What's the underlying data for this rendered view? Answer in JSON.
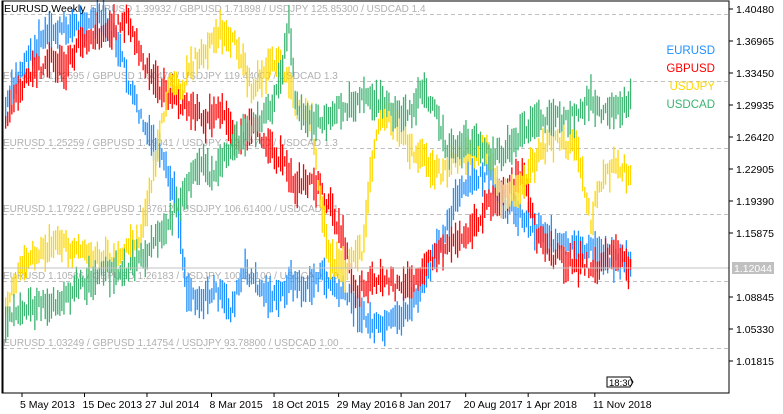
{
  "window": {
    "title": "EURUSD,Weekly"
  },
  "colors": {
    "EURUSD": "#1E90FF",
    "GBPUSD": "#FF0000",
    "USDJPY": "#FFD700",
    "USDCAD": "#3CB371",
    "grid": "#C0C0C0",
    "price_tag": "#C0C0C0"
  },
  "overlay_levels": [
    "EURUSD 1.39932 / GBPUSD 1.71898 / USDJPY 125.85300 / USDCAD 1.4",
    "EURUSD 1.32595 / GBPUSD 1.60470 / USDJPY 119.44000 / USDCAD 1.3",
    "EURUSD 1.25259 / GBPUSD 1.49041 / USDJPY 113.02700 / USDCAD 1.3",
    "EURUSD 1.17922 / GBPUSD 1.37612 / USDJPY 106.61400 / USDCAD 1.1",
    "EURUSD 1.10586 / GBPUSD 1.26183 / USDJPY 100.20100 / USDCAD 1.0",
    "EURUSD 1.03249 / GBPUSD 1.14754 / USDJPY 93.78800 / USDCAD 1.00"
  ],
  "period_marker": "18:30",
  "chart_data": {
    "type": "bar",
    "title": "EURUSD,Weekly",
    "xlabel": "",
    "ylabel": "",
    "ylim": [
      1.0048,
      1.4108
    ],
    "xlim_weeks": [
      0,
      300
    ],
    "grid": true,
    "legend_position": "top-right",
    "current_price": "1.12044",
    "y_ticks": [
      "1.40480",
      "1.36965",
      "1.33450",
      "1.29935",
      "1.26420",
      "1.22905",
      "1.19390",
      "1.15875",
      "1.08845",
      "1.05330",
      "1.01815"
    ],
    "x_ticks": [
      {
        "week": 12,
        "label": "5 May 2013"
      },
      {
        "week": 42,
        "label": "15 Dec 2013"
      },
      {
        "week": 72,
        "label": "27 Jul 2014"
      },
      {
        "week": 103,
        "label": "8 Mar 2015"
      },
      {
        "week": 133,
        "label": "18 Oct 2015"
      },
      {
        "week": 164,
        "label": "29 May 2016"
      },
      {
        "week": 194,
        "label": "8 Jan 2017"
      },
      {
        "week": 225,
        "label": "20 Aug 2017"
      },
      {
        "week": 255,
        "label": "1 Apr 2018"
      },
      {
        "week": 287,
        "label": "11 Nov 2018"
      }
    ],
    "series": [
      {
        "name": "EURUSD",
        "points": [
          [
            0,
            1.294
          ],
          [
            7,
            1.338
          ],
          [
            17,
            1.371
          ],
          [
            26,
            1.382
          ],
          [
            36,
            1.388
          ],
          [
            46,
            1.393
          ],
          [
            53,
            1.371
          ],
          [
            60,
            1.316
          ],
          [
            67,
            1.272
          ],
          [
            75,
            1.239
          ],
          [
            82,
            1.195
          ],
          [
            87,
            1.096
          ],
          [
            94,
            1.085
          ],
          [
            101,
            1.096
          ],
          [
            108,
            1.074
          ],
          [
            115,
            1.118
          ],
          [
            123,
            1.096
          ],
          [
            130,
            1.085
          ],
          [
            137,
            1.107
          ],
          [
            144,
            1.096
          ],
          [
            151,
            1.113
          ],
          [
            159,
            1.096
          ],
          [
            166,
            1.085
          ],
          [
            173,
            1.063
          ],
          [
            180,
            1.052
          ],
          [
            188,
            1.063
          ],
          [
            195,
            1.08
          ],
          [
            202,
            1.107
          ],
          [
            209,
            1.151
          ],
          [
            216,
            1.195
          ],
          [
            224,
            1.217
          ],
          [
            231,
            1.223
          ],
          [
            238,
            1.195
          ],
          [
            245,
            1.184
          ],
          [
            252,
            1.168
          ],
          [
            260,
            1.157
          ],
          [
            267,
            1.146
          ],
          [
            274,
            1.14
          ],
          [
            281,
            1.14
          ],
          [
            288,
            1.135
          ],
          [
            296,
            1.129
          ],
          [
            300,
            1.124
          ]
        ]
      },
      {
        "name": "GBPUSD",
        "points": [
          [
            0,
            1.283
          ],
          [
            7,
            1.316
          ],
          [
            14,
            1.338
          ],
          [
            22,
            1.349
          ],
          [
            29,
            1.338
          ],
          [
            36,
            1.371
          ],
          [
            43,
            1.377
          ],
          [
            50,
            1.382
          ],
          [
            58,
            1.393
          ],
          [
            63,
            1.366
          ],
          [
            67,
            1.338
          ],
          [
            75,
            1.316
          ],
          [
            82,
            1.305
          ],
          [
            89,
            1.294
          ],
          [
            96,
            1.283
          ],
          [
            103,
            1.294
          ],
          [
            111,
            1.261
          ],
          [
            118,
            1.272
          ],
          [
            125,
            1.261
          ],
          [
            132,
            1.239
          ],
          [
            139,
            1.212
          ],
          [
            147,
            1.217
          ],
          [
            154,
            1.195
          ],
          [
            161,
            1.162
          ],
          [
            168,
            1.096
          ],
          [
            175,
            1.107
          ],
          [
            183,
            1.107
          ],
          [
            190,
            1.096
          ],
          [
            197,
            1.113
          ],
          [
            204,
            1.129
          ],
          [
            212,
            1.146
          ],
          [
            219,
            1.157
          ],
          [
            226,
            1.168
          ],
          [
            233,
            1.195
          ],
          [
            240,
            1.201
          ],
          [
            248,
            1.223
          ],
          [
            255,
            1.157
          ],
          [
            262,
            1.135
          ],
          [
            269,
            1.129
          ],
          [
            276,
            1.124
          ],
          [
            284,
            1.118
          ],
          [
            291,
            1.14
          ],
          [
            300,
            1.118
          ]
        ]
      },
      {
        "name": "USDJPY",
        "points": [
          [
            0,
            1.085
          ],
          [
            7,
            1.118
          ],
          [
            17,
            1.14
          ],
          [
            26,
            1.146
          ],
          [
            36,
            1.14
          ],
          [
            46,
            1.129
          ],
          [
            55,
            1.135
          ],
          [
            65,
            1.151
          ],
          [
            70,
            1.212
          ],
          [
            75,
            1.283
          ],
          [
            79,
            1.327
          ],
          [
            84,
            1.316
          ],
          [
            91,
            1.349
          ],
          [
            99,
            1.371
          ],
          [
            103,
            1.382
          ],
          [
            111,
            1.366
          ],
          [
            118,
            1.316
          ],
          [
            125,
            1.338
          ],
          [
            132,
            1.349
          ],
          [
            139,
            1.305
          ],
          [
            147,
            1.283
          ],
          [
            151,
            1.195
          ],
          [
            156,
            1.129
          ],
          [
            163,
            1.118
          ],
          [
            171,
            1.14
          ],
          [
            175,
            1.217
          ],
          [
            180,
            1.294
          ],
          [
            188,
            1.272
          ],
          [
            195,
            1.25
          ],
          [
            202,
            1.239
          ],
          [
            209,
            1.223
          ],
          [
            216,
            1.239
          ],
          [
            224,
            1.25
          ],
          [
            231,
            1.256
          ],
          [
            238,
            1.195
          ],
          [
            245,
            1.206
          ],
          [
            252,
            1.228
          ],
          [
            260,
            1.256
          ],
          [
            267,
            1.261
          ],
          [
            274,
            1.25
          ],
          [
            281,
            1.173
          ],
          [
            286,
            1.217
          ],
          [
            293,
            1.234
          ],
          [
            300,
            1.223
          ]
        ]
      },
      {
        "name": "USDCAD",
        "points": [
          [
            0,
            1.063
          ],
          [
            7,
            1.074
          ],
          [
            17,
            1.08
          ],
          [
            26,
            1.085
          ],
          [
            36,
            1.102
          ],
          [
            46,
            1.113
          ],
          [
            55,
            1.118
          ],
          [
            65,
            1.129
          ],
          [
            72,
            1.151
          ],
          [
            79,
            1.173
          ],
          [
            87,
            1.206
          ],
          [
            94,
            1.239
          ],
          [
            99,
            1.217
          ],
          [
            106,
            1.25
          ],
          [
            113,
            1.261
          ],
          [
            120,
            1.278
          ],
          [
            127,
            1.294
          ],
          [
            132,
            1.327
          ],
          [
            136,
            1.393
          ],
          [
            139,
            1.305
          ],
          [
            144,
            1.278
          ],
          [
            151,
            1.283
          ],
          [
            159,
            1.294
          ],
          [
            166,
            1.3
          ],
          [
            173,
            1.305
          ],
          [
            180,
            1.305
          ],
          [
            188,
            1.289
          ],
          [
            195,
            1.294
          ],
          [
            200,
            1.316
          ],
          [
            204,
            1.305
          ],
          [
            212,
            1.25
          ],
          [
            219,
            1.256
          ],
          [
            226,
            1.261
          ],
          [
            233,
            1.239
          ],
          [
            240,
            1.25
          ],
          [
            248,
            1.267
          ],
          [
            255,
            1.278
          ],
          [
            262,
            1.289
          ],
          [
            269,
            1.283
          ],
          [
            276,
            1.289
          ],
          [
            281,
            1.311
          ],
          [
            286,
            1.289
          ],
          [
            293,
            1.294
          ],
          [
            300,
            1.305
          ]
        ]
      }
    ]
  }
}
